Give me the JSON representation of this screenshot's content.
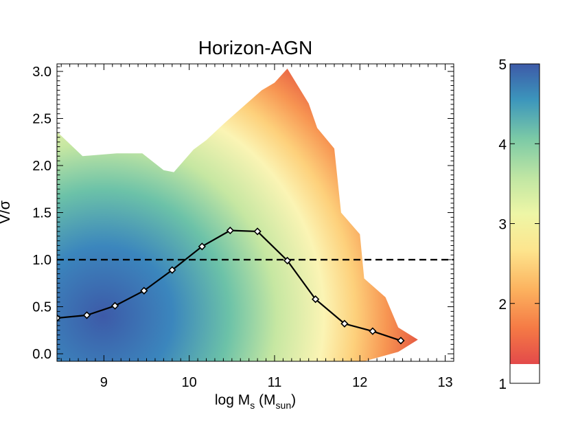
{
  "chart_data": {
    "type": "area",
    "title": "Horizon-AGN",
    "xlabel": {
      "pre": "log M",
      "sub1": "s",
      "mid": " (M",
      "sub2": "sun",
      "post": ")"
    },
    "ylabel": "V/σ",
    "xlim": [
      8.45,
      13.1
    ],
    "ylim": [
      -0.08,
      3.08
    ],
    "xticks": [
      9,
      10,
      11,
      12,
      13
    ],
    "xtick_labels": [
      "9",
      "10",
      "11",
      "12",
      "13"
    ],
    "yticks": [
      0.0,
      0.5,
      1.0,
      1.5,
      2.0,
      2.5,
      3.0
    ],
    "ytick_labels": [
      "0.0",
      "0.5",
      "1.0",
      "1.5",
      "2.0",
      "2.5",
      "3.0"
    ],
    "reference_line": {
      "y": 1.0,
      "style": "dashed"
    },
    "density_envelope_upper": [
      [
        8.45,
        2.36
      ],
      [
        8.75,
        2.1
      ],
      [
        9.15,
        2.13
      ],
      [
        9.45,
        2.13
      ],
      [
        9.7,
        1.95
      ],
      [
        9.82,
        1.93
      ],
      [
        10.05,
        2.17
      ],
      [
        10.2,
        2.27
      ],
      [
        10.4,
        2.44
      ],
      [
        10.6,
        2.6
      ],
      [
        10.85,
        2.8
      ],
      [
        11.0,
        2.88
      ],
      [
        11.15,
        3.03
      ],
      [
        11.4,
        2.66
      ],
      [
        11.5,
        2.4
      ],
      [
        11.7,
        2.18
      ],
      [
        11.78,
        1.5
      ],
      [
        12.0,
        1.27
      ],
      [
        12.05,
        0.8
      ],
      [
        12.3,
        0.6
      ],
      [
        12.45,
        0.28
      ],
      [
        12.68,
        0.15
      ],
      [
        12.45,
        0.02
      ],
      [
        12.05,
        -0.08
      ]
    ],
    "density_envelope_lower": [
      [
        8.45,
        -0.08
      ]
    ],
    "series": [
      {
        "style": "line-diamond",
        "x": [
          8.45,
          8.8,
          9.13,
          9.47,
          9.8,
          10.15,
          10.48,
          10.8,
          11.15,
          11.48,
          11.82,
          12.15,
          12.48
        ],
        "y": [
          0.38,
          0.41,
          0.51,
          0.67,
          0.89,
          1.14,
          1.31,
          1.3,
          0.99,
          0.58,
          0.32,
          0.24,
          0.14
        ]
      }
    ],
    "colorbar": {
      "range": [
        1,
        5
      ],
      "ticks": [
        1,
        2,
        3,
        4,
        5
      ],
      "tick_labels": [
        "1",
        "2",
        "3",
        "4",
        "5"
      ],
      "colors_low_to_high": [
        "#e34a4a",
        "#f57a45",
        "#fcb35f",
        "#fde58e",
        "#eef6a6",
        "#c0e6a3",
        "#7ccaa6",
        "#3c96bc",
        "#3d5aa8"
      ]
    }
  }
}
